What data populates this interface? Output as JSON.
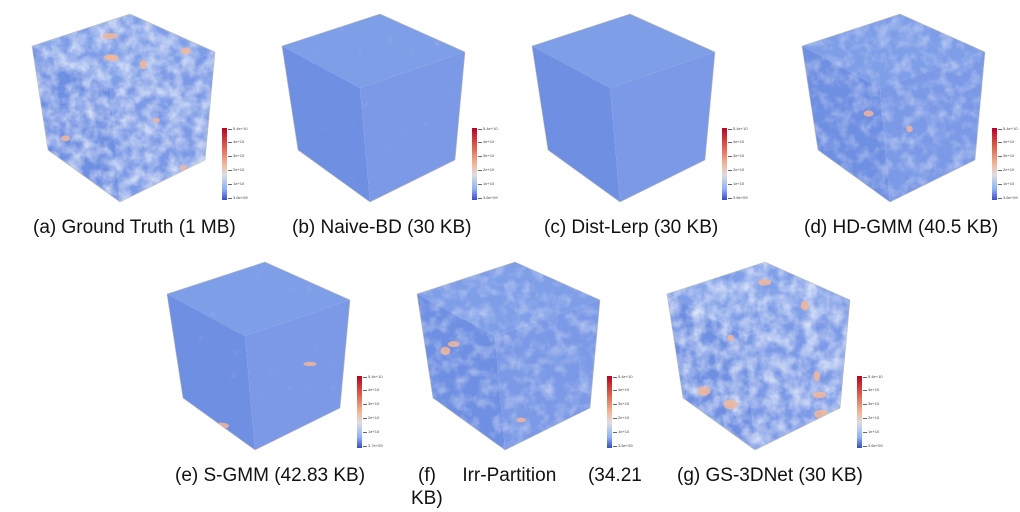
{
  "figure": {
    "panels": [
      {
        "caption": "(a) Ground Truth (1 MB)",
        "ticks": [
          "5.4e+10",
          "4e+10",
          "3e+10",
          "2e+10",
          "1e+10",
          "3.6e+09"
        ],
        "texture": "strong",
        "hotspots": "many"
      },
      {
        "caption": "(b) Naive-BD (30 KB)",
        "ticks": [
          "5.4e+10",
          "4e+10",
          "3e+10",
          "2e+10",
          "1e+10",
          "3.6e+09"
        ],
        "texture": "smooth",
        "hotspots": "none"
      },
      {
        "caption": "(c) Dist-Lerp (30 KB)",
        "ticks": [
          "5.4e+10",
          "4e+10",
          "3e+10",
          "2e+10",
          "1e+10",
          "3.6e+09"
        ],
        "texture": "flat",
        "hotspots": "none"
      },
      {
        "caption": "(d) HD-GMM (40.5 KB)",
        "ticks": [
          "5.4e+10",
          "4e+10",
          "3e+10",
          "2e+10",
          "1e+10",
          "3.6e+09"
        ],
        "texture": "medium",
        "hotspots": "few"
      },
      {
        "caption": "(e) S-GMM (42.83 KB)",
        "ticks": [
          "5.4e+10",
          "4e+10",
          "3e+10",
          "2e+10",
          "1e+10",
          "3.7e+09"
        ],
        "texture": "smooth",
        "hotspots": "few"
      },
      {
        "caption_line1": "(f)     Irr-Partition      (34.21",
        "caption_line2": "KB)",
        "ticks": [
          "5.4e+10",
          "4e+10",
          "3e+10",
          "2e+10",
          "1e+10",
          "3.6e+09"
        ],
        "texture": "medium",
        "hotspots": "few"
      },
      {
        "caption": "(g) GS-3DNet (30 KB)",
        "ticks": [
          "5.4e+10",
          "4e+10",
          "3e+10",
          "2e+10",
          "1e+10",
          "3.6e+09"
        ],
        "texture": "strong",
        "hotspots": "many"
      }
    ],
    "colormap": [
      "#3b4cc0",
      "#8fb1f8",
      "#dcdde1",
      "#f2b69a",
      "#dc5d4a",
      "#b40426"
    ]
  }
}
